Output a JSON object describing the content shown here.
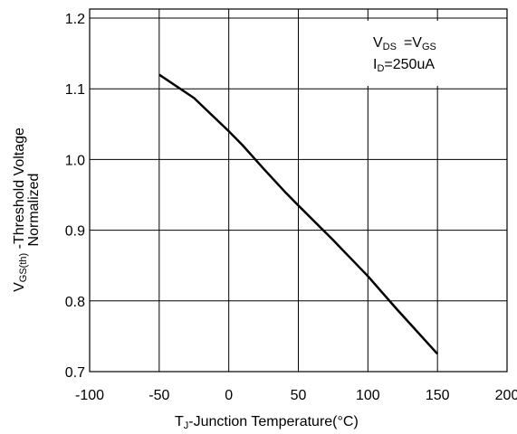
{
  "chart_data": {
    "type": "line",
    "xlabel": {
      "main": "T",
      "sub": "J",
      "rest": "-Junction Temperature(°C)"
    },
    "ylabel": {
      "line1": {
        "main": "V",
        "sub": "GS(th)",
        "rest": " -Threshold Voltage"
      },
      "line2": "Normalized"
    },
    "xlim": [
      -100,
      200
    ],
    "ylim": [
      0.7,
      1.2
    ],
    "x_ticks": [
      "-100",
      "-50",
      "0",
      "50",
      "100",
      "150",
      "200"
    ],
    "y_ticks": [
      "0.7",
      "0.8",
      "0.9",
      "1.0",
      "1.1",
      "1.2"
    ],
    "grid": true,
    "series": [
      {
        "x": [
          -50,
          -25,
          0,
          10,
          25,
          40,
          50,
          75,
          100,
          120,
          150
        ],
        "y": [
          1.12,
          1.087,
          1.04,
          1.02,
          0.987,
          0.955,
          0.935,
          0.886,
          0.835,
          0.79,
          0.725
        ]
      }
    ],
    "annotation": {
      "line1": {
        "v": "V",
        "v_sub": "DS",
        "eq": "=V",
        "eq_sub": "GS"
      },
      "line2": {
        "i": "I",
        "i_sub": "D",
        "rest": "=250uA"
      }
    }
  },
  "colors": {
    "line": "#000000",
    "grid": "#000000",
    "background": "#ffffff"
  }
}
